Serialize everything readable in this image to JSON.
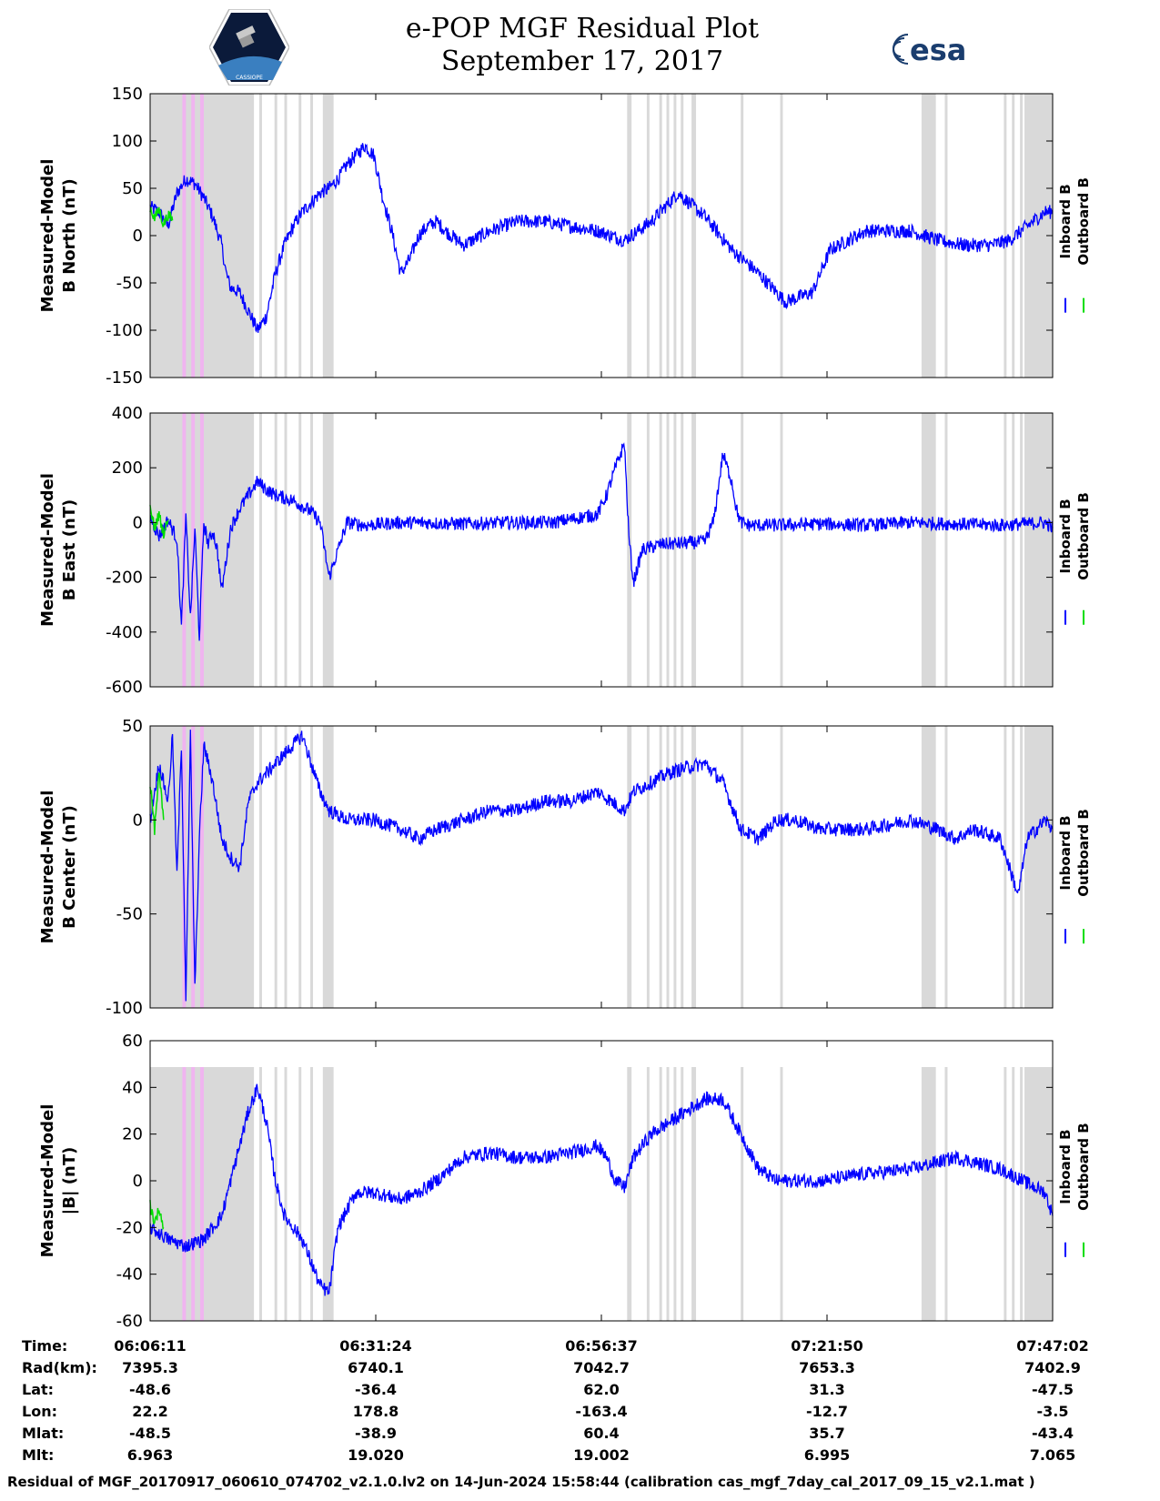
{
  "header": {
    "title": "e-POP MGF Residual Plot",
    "date": "September 17, 2017",
    "logo_left_text": "CASSIOPE",
    "logo_right_text": "esa"
  },
  "colors": {
    "inboard": "#0000ff",
    "outboard": "#00dd00",
    "shade_gray": "#d9d9d9",
    "shade_pink": "#f0b4f0"
  },
  "legend": {
    "inboard": "Inboard B",
    "outboard": "Outboard B"
  },
  "chart_data": [
    {
      "type": "line",
      "ylabel": [
        "Measured-Model",
        "B North (nT)"
      ],
      "ylim": [
        -150,
        150
      ],
      "yticks": [
        "150",
        "100",
        "50",
        "0",
        "-50",
        "-100",
        "-150"
      ],
      "x_time_min": [
        0,
        100.85
      ],
      "series": [
        {
          "name": "Inboard B",
          "x": [
            0,
            1,
            2,
            3,
            4,
            5,
            6,
            7,
            8,
            8.5,
            9,
            10,
            11,
            12,
            13,
            14,
            15,
            16,
            17,
            18,
            19,
            20,
            21,
            22,
            23,
            24,
            25,
            26,
            27,
            28,
            29,
            30,
            31,
            32,
            33,
            35,
            38,
            41,
            44,
            47,
            50,
            53,
            56,
            59,
            62,
            65,
            68,
            71,
            74,
            76,
            78,
            80,
            82,
            85,
            88,
            91,
            94,
            96,
            98,
            100,
            100.85
          ],
          "y": [
            30,
            25,
            10,
            45,
            60,
            55,
            40,
            20,
            -10,
            -40,
            -55,
            -60,
            -80,
            -100,
            -85,
            -40,
            -10,
            10,
            25,
            35,
            45,
            50,
            60,
            75,
            85,
            95,
            85,
            40,
            5,
            -40,
            -25,
            0,
            10,
            15,
            5,
            -10,
            5,
            15,
            15,
            10,
            5,
            -5,
            15,
            45,
            20,
            -15,
            -40,
            -70,
            -60,
            -15,
            -5,
            5,
            5,
            5,
            -5,
            -10,
            -10,
            -5,
            10,
            25,
            25
          ]
        },
        {
          "name": "Outboard B",
          "x": [
            0,
            0.5,
            1,
            1.5,
            2,
            2.5
          ],
          "y": [
            30,
            18,
            28,
            12,
            22,
            16
          ]
        }
      ]
    },
    {
      "type": "line",
      "ylabel": [
        "Measured-Model",
        "B East (nT)"
      ],
      "ylim": [
        -600,
        400
      ],
      "yticks": [
        "400",
        "200",
        "0",
        "-200",
        "-400",
        "-600"
      ],
      "x_time_min": [
        0,
        100.85
      ],
      "series": [
        {
          "name": "Inboard B",
          "x": [
            0,
            1,
            2,
            3,
            3.5,
            4,
            4.5,
            5,
            5.5,
            6,
            6.5,
            7,
            7.5,
            8,
            9,
            10,
            11,
            12,
            13,
            14,
            15,
            16,
            17,
            18,
            19,
            20,
            22,
            24,
            26,
            28,
            30,
            35,
            40,
            45,
            50,
            51,
            52,
            53,
            53.5,
            54,
            55,
            57,
            60,
            62,
            63,
            64,
            65,
            65.5,
            66,
            67,
            68,
            70,
            75,
            80,
            85,
            90,
            95,
            100,
            100.85
          ],
          "y": [
            20,
            -50,
            10,
            -60,
            -380,
            20,
            -350,
            -20,
            -420,
            0,
            -80,
            -30,
            -100,
            -250,
            -20,
            50,
            100,
            150,
            120,
            100,
            90,
            80,
            60,
            40,
            0,
            -200,
            0,
            -10,
            -5,
            0,
            0,
            -5,
            0,
            0,
            30,
            100,
            200,
            290,
            -50,
            -220,
            -100,
            -80,
            -75,
            -70,
            10,
            250,
            150,
            50,
            0,
            -10,
            -10,
            -10,
            -5,
            -10,
            0,
            -5,
            -10,
            0,
            -20
          ]
        },
        {
          "name": "Outboard B",
          "x": [
            0,
            0.5,
            1,
            1.5,
            2
          ],
          "y": [
            50,
            -20,
            30,
            -40,
            10
          ]
        }
      ]
    },
    {
      "type": "line",
      "ylabel": [
        "Measured-Model",
        "B Center (nT)"
      ],
      "ylim": [
        -100,
        50
      ],
      "yticks": [
        "50",
        "0",
        "-50",
        "-100"
      ],
      "x_time_min": [
        0,
        100.85
      ],
      "series": [
        {
          "name": "Inboard B",
          "x": [
            0,
            1,
            2,
            2.5,
            3,
            3.5,
            4,
            4.5,
            5,
            5.5,
            6,
            7,
            8,
            9,
            10,
            11,
            12,
            13,
            14,
            15,
            16,
            17,
            18,
            19,
            20,
            22,
            25,
            28,
            30,
            32,
            35,
            38,
            41,
            44,
            47,
            50,
            53,
            54,
            56,
            58,
            60,
            62,
            64,
            66,
            68,
            70,
            72,
            75,
            80,
            85,
            88,
            90,
            92,
            95,
            97,
            98,
            100,
            100.85
          ],
          "y": [
            0,
            30,
            10,
            45,
            -30,
            40,
            -95,
            45,
            -90,
            -10,
            40,
            20,
            -10,
            -20,
            -25,
            10,
            20,
            25,
            30,
            35,
            40,
            45,
            30,
            15,
            5,
            0,
            0,
            -5,
            -10,
            -5,
            0,
            5,
            5,
            10,
            10,
            15,
            5,
            15,
            20,
            25,
            28,
            30,
            20,
            -5,
            -10,
            0,
            0,
            -5,
            -5,
            0,
            -5,
            -10,
            -5,
            -10,
            -40,
            -10,
            0,
            -5
          ]
        },
        {
          "name": "Outboard B",
          "x": [
            0,
            0.5,
            1,
            1.5
          ],
          "y": [
            20,
            -5,
            25,
            0
          ]
        }
      ]
    },
    {
      "type": "line",
      "ylabel": [
        "Measured-Model",
        "|B| (nT)"
      ],
      "ylim": [
        -60,
        60
      ],
      "yticks": [
        "60",
        "40",
        "20",
        "0",
        "-20",
        "-40",
        "-60"
      ],
      "x_time_min": [
        0,
        100.85
      ],
      "series": [
        {
          "name": "Inboard B",
          "x": [
            0,
            2,
            4,
            6,
            8,
            9,
            10,
            11,
            12,
            13,
            14,
            15,
            17,
            18,
            19,
            20,
            21,
            23,
            25,
            28,
            30,
            32,
            35,
            38,
            41,
            44,
            47,
            50,
            51,
            52,
            53,
            54,
            56,
            58,
            60,
            62,
            64,
            66,
            68,
            70,
            72,
            75,
            80,
            85,
            90,
            95,
            100,
            100.85
          ],
          "y": [
            -20,
            -25,
            -28,
            -25,
            -15,
            0,
            15,
            30,
            40,
            25,
            0,
            -15,
            -25,
            -35,
            -45,
            -48,
            -20,
            -5,
            -5,
            -8,
            -5,
            0,
            10,
            12,
            10,
            10,
            12,
            15,
            10,
            0,
            -3,
            10,
            20,
            25,
            30,
            35,
            35,
            20,
            5,
            0,
            0,
            0,
            3,
            5,
            10,
            5,
            -5,
            -15
          ]
        },
        {
          "name": "Outboard B",
          "x": [
            0,
            0.5,
            1,
            1.5
          ],
          "y": [
            -10,
            -18,
            -12,
            -20
          ]
        }
      ]
    }
  ],
  "x_axis": {
    "tick_labels": [
      "06:06:11",
      "06:31:24",
      "06:56:37",
      "07:21:50",
      "07:47:02"
    ]
  },
  "ephemeris": {
    "rows": [
      {
        "label": "Time:",
        "values": [
          "06:06:11",
          "06:31:24",
          "06:56:37",
          "07:21:50",
          "07:47:02"
        ]
      },
      {
        "label": "Rad(km):",
        "values": [
          "7395.3",
          "6740.1",
          "7042.7",
          "7653.3",
          "7402.9"
        ]
      },
      {
        "label": "Lat:",
        "values": [
          "-48.6",
          "-36.4",
          "62.0",
          "31.3",
          "-47.5"
        ]
      },
      {
        "label": "Lon:",
        "values": [
          "22.2",
          "178.8",
          "-163.4",
          "-12.7",
          "-3.5"
        ]
      },
      {
        "label": "Mlat:",
        "values": [
          "-48.5",
          "-38.9",
          "60.4",
          "35.7",
          "-43.4"
        ]
      },
      {
        "label": "Mlt:",
        "values": [
          "6.963",
          "19.020",
          "19.002",
          "6.995",
          "7.065"
        ]
      }
    ]
  },
  "shading": {
    "gray_bands_min": [
      [
        0,
        11.6
      ],
      [
        12.2,
        12.5
      ],
      [
        13.9,
        14.2
      ],
      [
        15.0,
        15.3
      ],
      [
        16.6,
        16.9
      ],
      [
        17.9,
        18.2
      ],
      [
        19.3,
        20.5
      ],
      [
        53.3,
        53.8
      ],
      [
        55.5,
        55.8
      ],
      [
        56.9,
        57.2
      ],
      [
        57.7,
        58.0
      ],
      [
        58.5,
        58.8
      ],
      [
        59.3,
        59.6
      ],
      [
        60.5,
        61.0
      ],
      [
        66.0,
        66.3
      ],
      [
        70.4,
        70.7
      ],
      [
        86.2,
        87.8
      ],
      [
        88.8,
        89.1
      ],
      [
        95.4,
        95.7
      ],
      [
        96.3,
        96.6
      ],
      [
        97.2,
        97.5
      ],
      [
        97.7,
        100.85
      ]
    ],
    "pink_bands_min": [
      [
        3.6,
        4.0
      ],
      [
        4.6,
        5.0
      ],
      [
        5.6,
        6.0
      ]
    ]
  },
  "footer": "Residual of MGF_20170917_060610_074702_v2.1.0.lv2 on 14-Jun-2024 15:58:44 (calibration cas_mgf_7day_cal_2017_09_15_v2.1.mat )"
}
